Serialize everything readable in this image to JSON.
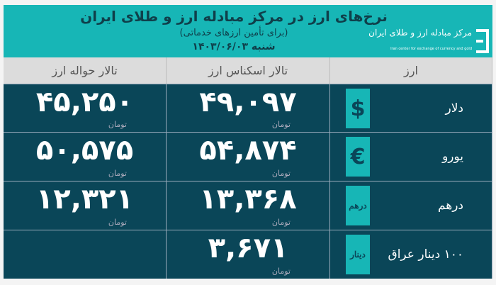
{
  "header": {
    "title": "نرخ‌های ارز در مرکز مبادله ارز و طلای ایران",
    "subtitle": "(برای تأمین ارزهای خدماتی)",
    "date": "شنبه ۱۴۰۳/۰۶/۰۳",
    "logo": {
      "fa": "مرکز مبادله ارز و طلای ایران",
      "en": "Iran center for exchange of currency and gold"
    }
  },
  "columns": [
    "ارز",
    "تالار اسکناس ارز",
    "تالار حواله ارز"
  ],
  "unit": "تومان",
  "rows": [
    {
      "name": "دلار",
      "icon": "$",
      "icon_name": "dollar-icon",
      "cash": "۴۹,۰۹۷",
      "transfer": "۴۵,۲۵۰"
    },
    {
      "name": "یورو",
      "icon": "€",
      "icon_name": "euro-icon",
      "cash": "۵۴,۸۷۴",
      "transfer": "۵۰,۵۷۵"
    },
    {
      "name": "درهم",
      "icon": "درهم",
      "icon_name": "dirham-icon",
      "cash": "۱۳,۳۶۸",
      "transfer": "۱۲,۳۲۱"
    },
    {
      "name": "۱۰۰ دینار عراق",
      "icon": "دینار",
      "icon_name": "dinar-icon",
      "cash": "۳,۶۷۱",
      "transfer": ""
    }
  ],
  "colors": {
    "teal": "#17b6b6",
    "navy": "#0a4658",
    "header_gray": "#dcdcdc"
  }
}
